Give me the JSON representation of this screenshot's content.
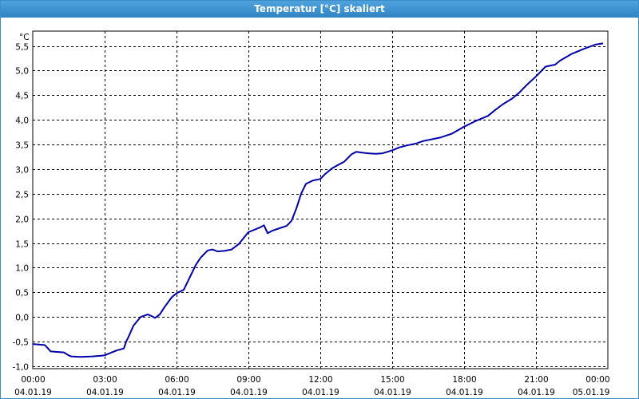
{
  "window": {
    "title": "Temperatur [°C] skaliert"
  },
  "chart_data": {
    "type": "line",
    "title": "Temperatur [°C] skaliert",
    "ylabel": "°C",
    "xlabel": "",
    "ylim": [
      -1.05,
      5.8
    ],
    "xlim": [
      0,
      24
    ],
    "grid": true,
    "legend": "none",
    "line_color": "#0000aa",
    "y_ticks": [
      "-1,0",
      "-0,5",
      "0,0",
      "0,5",
      "1,0",
      "1,5",
      "2,0",
      "2,5",
      "3,0",
      "3,5",
      "4,0",
      "4,5",
      "5,0",
      "5,5"
    ],
    "y_tick_values": [
      -1.0,
      -0.5,
      0.0,
      0.5,
      1.0,
      1.5,
      2.0,
      2.5,
      3.0,
      3.5,
      4.0,
      4.5,
      5.0,
      5.5
    ],
    "x_ticks": [
      {
        "time": "00:00",
        "date": "04.01.19"
      },
      {
        "time": "03:00",
        "date": "04.01.19"
      },
      {
        "time": "06:00",
        "date": "04.01.19"
      },
      {
        "time": "09:00",
        "date": "04.01.19"
      },
      {
        "time": "12:00",
        "date": "04.01.19"
      },
      {
        "time": "15:00",
        "date": "04.01.19"
      },
      {
        "time": "18:00",
        "date": "04.01.19"
      },
      {
        "time": "21:00",
        "date": "04.01.19"
      },
      {
        "time": "00:00",
        "date": "05.01.19"
      }
    ],
    "x_tick_values": [
      0,
      3,
      6,
      9,
      12,
      15,
      18,
      21,
      24
    ],
    "series": [
      {
        "x": [
          0,
          0.5,
          0.6,
          0.75,
          1.3,
          1.5,
          1.6,
          2.0,
          2.5,
          2.8,
          3.0,
          3.3,
          3.5,
          3.8,
          3.9,
          4.0,
          4.2,
          4.5,
          4.8,
          4.95,
          5.1,
          5.3,
          5.5,
          5.8,
          6.0,
          6.3,
          6.5,
          6.8,
          7.0,
          7.3,
          7.5,
          7.7,
          8.0,
          8.3,
          8.6,
          9.0,
          9.2,
          9.5,
          9.65,
          9.8,
          10.0,
          10.3,
          10.6,
          10.8,
          11.0,
          11.2,
          11.4,
          11.7,
          12.0,
          12.2,
          12.5,
          12.8,
          13.0,
          13.3,
          13.5,
          13.8,
          14.0,
          14.3,
          14.6,
          15.0,
          15.3,
          15.6,
          16.0,
          16.3,
          16.6,
          17.0,
          17.5,
          18.0,
          18.5,
          19.0,
          19.3,
          19.6,
          20.0,
          20.3,
          20.6,
          21.0,
          21.4,
          21.8,
          22.0,
          22.5,
          23.0,
          23.5,
          23.8
        ],
        "y": [
          -0.55,
          -0.57,
          -0.62,
          -0.7,
          -0.72,
          -0.78,
          -0.8,
          -0.81,
          -0.8,
          -0.79,
          -0.78,
          -0.72,
          -0.68,
          -0.64,
          -0.5,
          -0.4,
          -0.18,
          0.0,
          0.05,
          0.02,
          -0.02,
          0.05,
          0.2,
          0.4,
          0.48,
          0.55,
          0.75,
          1.05,
          1.2,
          1.35,
          1.37,
          1.33,
          1.34,
          1.37,
          1.48,
          1.72,
          1.76,
          1.82,
          1.86,
          1.7,
          1.75,
          1.8,
          1.85,
          1.95,
          2.2,
          2.5,
          2.7,
          2.77,
          2.8,
          2.9,
          3.02,
          3.1,
          3.15,
          3.3,
          3.35,
          3.33,
          3.32,
          3.31,
          3.32,
          3.38,
          3.44,
          3.48,
          3.52,
          3.57,
          3.6,
          3.64,
          3.72,
          3.86,
          3.98,
          4.08,
          4.2,
          4.31,
          4.43,
          4.55,
          4.7,
          4.88,
          5.08,
          5.12,
          5.2,
          5.34,
          5.44,
          5.53,
          5.55
        ]
      }
    ]
  }
}
